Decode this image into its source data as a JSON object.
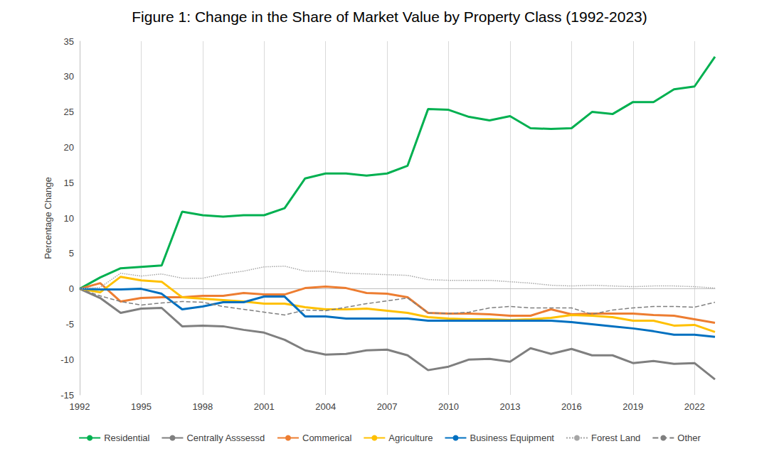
{
  "chart_data": {
    "type": "line",
    "title": "Figure 1: Change in the Share of Market Value by Property Class (1992-2023)",
    "y_label": "Percentage Change",
    "x": [
      1992,
      1993,
      1994,
      1995,
      1996,
      1997,
      1998,
      1999,
      2000,
      2001,
      2002,
      2003,
      2004,
      2005,
      2006,
      2007,
      2008,
      2009,
      2010,
      2011,
      2012,
      2013,
      2014,
      2015,
      2016,
      2017,
      2018,
      2019,
      2020,
      2021,
      2022,
      2023
    ],
    "xlim": [
      1992,
      2023
    ],
    "xticks": [
      1992,
      1995,
      1998,
      2001,
      2004,
      2007,
      2010,
      2013,
      2016,
      2019,
      2022
    ],
    "ylim": [
      -15,
      35
    ],
    "yticks": [
      -15,
      -10,
      -5,
      0,
      5,
      10,
      15,
      20,
      25,
      30,
      35
    ],
    "grid": true,
    "legend": "bottom",
    "series": [
      {
        "name": "Residential",
        "color": "#00b050",
        "line_style": "solid",
        "values": [
          0,
          1.6,
          2.9,
          3.1,
          3.3,
          10.9,
          10.4,
          10.2,
          10.4,
          10.4,
          11.4,
          15.6,
          16.3,
          16.3,
          16.0,
          16.3,
          17.4,
          25.4,
          25.3,
          24.3,
          23.8,
          24.4,
          22.7,
          22.6,
          22.7,
          25.0,
          24.7,
          26.4,
          26.4,
          28.2,
          28.6,
          32.8
        ]
      },
      {
        "name": "Centrally Asssessd",
        "color": "#7f7f7f",
        "line_style": "solid",
        "values": [
          0,
          -1.3,
          -3.4,
          -2.8,
          -2.7,
          -5.3,
          -5.2,
          -5.3,
          -5.8,
          -6.2,
          -7.2,
          -8.7,
          -9.3,
          -9.2,
          -8.7,
          -8.6,
          -9.4,
          -11.5,
          -11.0,
          -10.0,
          -9.9,
          -10.3,
          -8.4,
          -9.2,
          -8.5,
          -9.4,
          -9.4,
          -10.5,
          -10.2,
          -10.6,
          -10.5,
          -12.8
        ]
      },
      {
        "name": "Commerical",
        "color": "#ed7d31",
        "line_style": "solid",
        "values": [
          0,
          0.8,
          -1.8,
          -1.3,
          -1.2,
          -1.2,
          -1.0,
          -1.0,
          -0.6,
          -0.8,
          -0.8,
          0.1,
          0.3,
          0.1,
          -0.6,
          -0.7,
          -1.2,
          -3.4,
          -3.5,
          -3.5,
          -3.6,
          -3.8,
          -3.8,
          -2.9,
          -3.6,
          -3.5,
          -3.5,
          -3.5,
          -3.7,
          -3.8,
          -4.3,
          -4.8
        ]
      },
      {
        "name": "Agriculture",
        "color": "#ffc000",
        "line_style": "solid",
        "values": [
          0,
          -0.5,
          1.7,
          1.2,
          1.0,
          -1.2,
          -1.4,
          -1.6,
          -1.8,
          -2.1,
          -2.1,
          -2.6,
          -2.9,
          -2.9,
          -2.8,
          -3.1,
          -3.4,
          -4.0,
          -4.2,
          -4.3,
          -4.3,
          -4.4,
          -4.3,
          -4.1,
          -3.7,
          -3.8,
          -4.0,
          -4.5,
          -4.5,
          -5.2,
          -5.1,
          -6.1
        ]
      },
      {
        "name": "Business Equipment",
        "color": "#0070c0",
        "line_style": "solid",
        "values": [
          0,
          -0.1,
          -0.1,
          0.0,
          -0.7,
          -2.9,
          -2.5,
          -1.9,
          -1.9,
          -1.1,
          -1.1,
          -3.9,
          -3.9,
          -4.2,
          -4.2,
          -4.2,
          -4.2,
          -4.5,
          -4.5,
          -4.5,
          -4.5,
          -4.5,
          -4.5,
          -4.5,
          -4.7,
          -5.0,
          -5.3,
          -5.6,
          -6.0,
          -6.5,
          -6.5,
          -6.8
        ]
      },
      {
        "name": "Forest Land",
        "color": "#a6a6a6",
        "line_style": "dotted",
        "values": [
          0,
          0.2,
          2.2,
          1.8,
          2.1,
          1.5,
          1.5,
          2.1,
          2.5,
          3.1,
          3.2,
          2.5,
          2.5,
          2.2,
          2.1,
          2.0,
          1.9,
          1.3,
          1.2,
          1.2,
          1.2,
          1.0,
          0.8,
          0.5,
          0.4,
          0.5,
          0.4,
          0.3,
          0.4,
          0.4,
          0.3,
          0.1
        ]
      },
      {
        "name": "Other",
        "color": "#7f7f7f",
        "line_style": "dashed",
        "values": [
          0,
          -1.0,
          -1.8,
          -2.3,
          -2.0,
          -1.8,
          -1.9,
          -2.5,
          -2.9,
          -3.3,
          -3.7,
          -3.0,
          -3.1,
          -2.6,
          -2.1,
          -1.7,
          -1.3,
          -3.4,
          -3.5,
          -3.3,
          -2.7,
          -2.5,
          -2.7,
          -2.7,
          -2.7,
          -3.6,
          -3.0,
          -2.7,
          -2.5,
          -2.5,
          -2.6,
          -1.9
        ]
      }
    ]
  }
}
